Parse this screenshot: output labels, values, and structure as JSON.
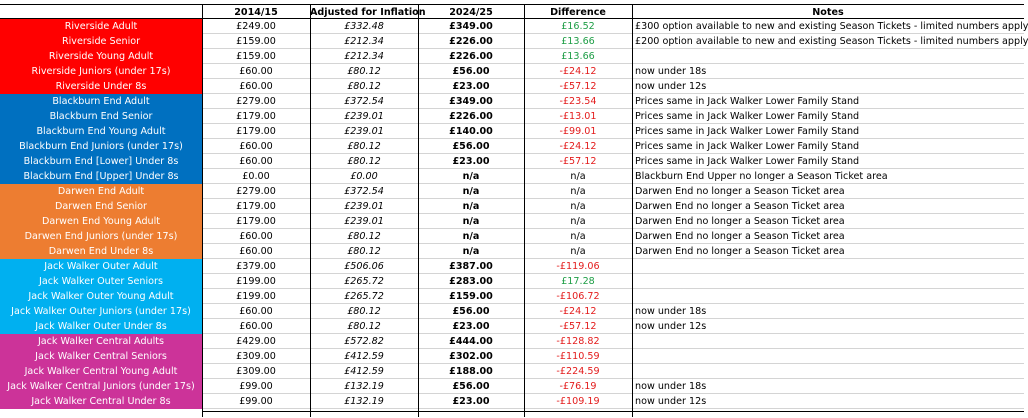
{
  "headers": {
    "col0": "",
    "col1": "2014/15",
    "col2": "Adjusted for Inflation",
    "col3": "2024/25",
    "col4": "Difference",
    "col5": "Notes"
  },
  "colors": {
    "riverside": "#ff0000",
    "blackburn": "#0070c0",
    "darwen": "#ed7d31",
    "jack_outer": "#00b0f0",
    "jack_central": "#cc3399",
    "positive": "#1e9e46",
    "negative": "#e31c1c"
  },
  "rows": [
    {
      "group": "riverside",
      "name": "Riverside Adult",
      "p2014": "£249.00",
      "adj": "£332.48",
      "p2024": "£349.00",
      "diff": "£16.52",
      "sign": "pos",
      "note": "£300 option available to new and existing Season Tickets - limited numbers apply"
    },
    {
      "group": "riverside",
      "name": "Riverside Senior",
      "p2014": "£159.00",
      "adj": "£212.34",
      "p2024": "£226.00",
      "diff": "£13.66",
      "sign": "pos",
      "note": "£200 option available to new and existing Season Tickets - limited numbers apply"
    },
    {
      "group": "riverside",
      "name": "Riverside Young Adult",
      "p2014": "£159.00",
      "adj": "£212.34",
      "p2024": "£226.00",
      "diff": "£13.66",
      "sign": "pos",
      "note": ""
    },
    {
      "group": "riverside",
      "name": "Riverside Juniors (under 17s)",
      "p2014": "£60.00",
      "adj": "£80.12",
      "p2024": "£56.00",
      "diff": "-£24.12",
      "sign": "neg",
      "note": "now under 18s"
    },
    {
      "group": "riverside",
      "name": "Riverside Under 8s",
      "p2014": "£60.00",
      "adj": "£80.12",
      "p2024": "£23.00",
      "diff": "-£57.12",
      "sign": "neg",
      "note": "now under 12s"
    },
    {
      "group": "blackburn",
      "name": "Blackburn End Adult",
      "p2014": "£279.00",
      "adj": "£372.54",
      "p2024": "£349.00",
      "diff": "-£23.54",
      "sign": "neg",
      "note": "Prices same in Jack Walker Lower Family Stand"
    },
    {
      "group": "blackburn",
      "name": "Blackburn End Senior",
      "p2014": "£179.00",
      "adj": "£239.01",
      "p2024": "£226.00",
      "diff": "-£13.01",
      "sign": "neg",
      "note": "Prices same in Jack Walker Lower Family Stand"
    },
    {
      "group": "blackburn",
      "name": "Blackburn End Young Adult",
      "p2014": "£179.00",
      "adj": "£239.01",
      "p2024": "£140.00",
      "diff": "-£99.01",
      "sign": "neg",
      "note": "Prices same in Jack Walker Lower Family Stand"
    },
    {
      "group": "blackburn",
      "name": "Blackburn End Juniors (under 17s)",
      "p2014": "£60.00",
      "adj": "£80.12",
      "p2024": "£56.00",
      "diff": "-£24.12",
      "sign": "neg",
      "note": "Prices same in Jack Walker Lower Family Stand"
    },
    {
      "group": "blackburn",
      "name": "Blackburn End [Lower] Under 8s",
      "p2014": "£60.00",
      "adj": "£80.12",
      "p2024": "£23.00",
      "diff": "-£57.12",
      "sign": "neg",
      "note": "Prices same in Jack Walker Lower Family Stand"
    },
    {
      "group": "blackburn",
      "name": "Blackburn End [Upper] Under 8s",
      "p2014": "£0.00",
      "adj": "£0.00",
      "p2024": "n/a",
      "diff": "n/a",
      "sign": "neutral",
      "note": "Blackburn End Upper no longer a Season Ticket area"
    },
    {
      "group": "darwen",
      "name": "Darwen End Adult",
      "p2014": "£279.00",
      "adj": "£372.54",
      "p2024": "n/a",
      "diff": "n/a",
      "sign": "neutral",
      "note": "Darwen End no longer a Season Ticket area"
    },
    {
      "group": "darwen",
      "name": "Darwen End Senior",
      "p2014": "£179.00",
      "adj": "£239.01",
      "p2024": "n/a",
      "diff": "n/a",
      "sign": "neutral",
      "note": "Darwen End no longer a Season Ticket area"
    },
    {
      "group": "darwen",
      "name": "Darwen End Young Adult",
      "p2014": "£179.00",
      "adj": "£239.01",
      "p2024": "n/a",
      "diff": "n/a",
      "sign": "neutral",
      "note": "Darwen End no longer a Season Ticket area"
    },
    {
      "group": "darwen",
      "name": "Darwen End Juniors (under 17s)",
      "p2014": "£60.00",
      "adj": "£80.12",
      "p2024": "n/a",
      "diff": "n/a",
      "sign": "neutral",
      "note": "Darwen End no longer a Season Ticket area"
    },
    {
      "group": "darwen",
      "name": "Darwen End Under 8s",
      "p2014": "£60.00",
      "adj": "£80.12",
      "p2024": "n/a",
      "diff": "n/a",
      "sign": "neutral",
      "note": "Darwen End no longer a Season Ticket area"
    },
    {
      "group": "jack_outer",
      "name": "Jack Walker Outer Adult",
      "p2014": "£379.00",
      "adj": "£506.06",
      "p2024": "£387.00",
      "diff": "-£119.06",
      "sign": "neg",
      "note": ""
    },
    {
      "group": "jack_outer",
      "name": "Jack Walker Outer Seniors",
      "p2014": "£199.00",
      "adj": "£265.72",
      "p2024": "£283.00",
      "diff": "£17.28",
      "sign": "pos",
      "note": ""
    },
    {
      "group": "jack_outer",
      "name": "Jack Walker Outer Young Adult",
      "p2014": "£199.00",
      "adj": "£265.72",
      "p2024": "£159.00",
      "diff": "-£106.72",
      "sign": "neg",
      "note": ""
    },
    {
      "group": "jack_outer",
      "name": "Jack Walker Outer Juniors (under 17s)",
      "p2014": "£60.00",
      "adj": "£80.12",
      "p2024": "£56.00",
      "diff": "-£24.12",
      "sign": "neg",
      "note": "now under 18s"
    },
    {
      "group": "jack_outer",
      "name": "Jack Walker Outer Under 8s",
      "p2014": "£60.00",
      "adj": "£80.12",
      "p2024": "£23.00",
      "diff": "-£57.12",
      "sign": "neg",
      "note": "now under 12s"
    },
    {
      "group": "jack_central",
      "name": "Jack Walker Central Adults",
      "p2014": "£429.00",
      "adj": "£572.82",
      "p2024": "£444.00",
      "diff": "-£128.82",
      "sign": "neg",
      "note": ""
    },
    {
      "group": "jack_central",
      "name": "Jack Walker Central Seniors",
      "p2014": "£309.00",
      "adj": "£412.59",
      "p2024": "£302.00",
      "diff": "-£110.59",
      "sign": "neg",
      "note": ""
    },
    {
      "group": "jack_central",
      "name": "Jack Walker Central Young Adult",
      "p2014": "£309.00",
      "adj": "£412.59",
      "p2024": "£188.00",
      "diff": "-£224.59",
      "sign": "neg",
      "note": ""
    },
    {
      "group": "jack_central",
      "name": "Jack Walker Central Juniors (under 17s)",
      "p2014": "£99.00",
      "adj": "£132.19",
      "p2024": "£56.00",
      "diff": "-£76.19",
      "sign": "neg",
      "note": "now under 18s"
    },
    {
      "group": "jack_central",
      "name": "Jack Walker Central Under 8s",
      "p2014": "£99.00",
      "adj": "£132.19",
      "p2024": "£23.00",
      "diff": "-£109.19",
      "sign": "neg",
      "note": "now under 12s"
    }
  ]
}
